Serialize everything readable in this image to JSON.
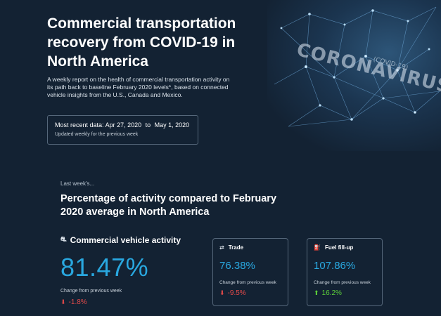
{
  "hero": {
    "title": "Commercial transportation recovery from COVID-19 in North America",
    "description": "A weekly report on the health of commercial transportation activity on its path back to baseline February 2020 levels*, based on connected vehicle insights from the U.S., Canada and Mexico.",
    "image_word": "CORONAVIRUS",
    "image_subword": "(COVID-19)"
  },
  "recent": {
    "label": "Most recent data:",
    "start": "Apr 27, 2020",
    "separator": "to",
    "end": "May 1, 2020",
    "note": "Updated weekly for the previous week"
  },
  "section": {
    "kicker": "Last week's...",
    "title": "Percentage of activity compared to February 2020 average in North America"
  },
  "metrics": {
    "main": {
      "icon": "vehicle-icon",
      "label": "Commercial vehicle activity",
      "value": "81.47%",
      "change_label": "Change from previous week",
      "change": "-1.8%",
      "direction": "down"
    },
    "trade": {
      "icon": "trade-arrows-icon",
      "label": "Trade",
      "value": "76.38%",
      "change_label": "Change from previous week",
      "change": "-9.5%",
      "direction": "down"
    },
    "fuel": {
      "icon": "fuel-pump-icon",
      "label": "Fuel fill-up",
      "value": "107.86%",
      "change_label": "Change from previous week",
      "change": "16.2%",
      "direction": "up"
    }
  },
  "colors": {
    "background": "#132233",
    "accent": "#29a8e0",
    "down": "#e24a4a",
    "up": "#5ccf3a"
  }
}
